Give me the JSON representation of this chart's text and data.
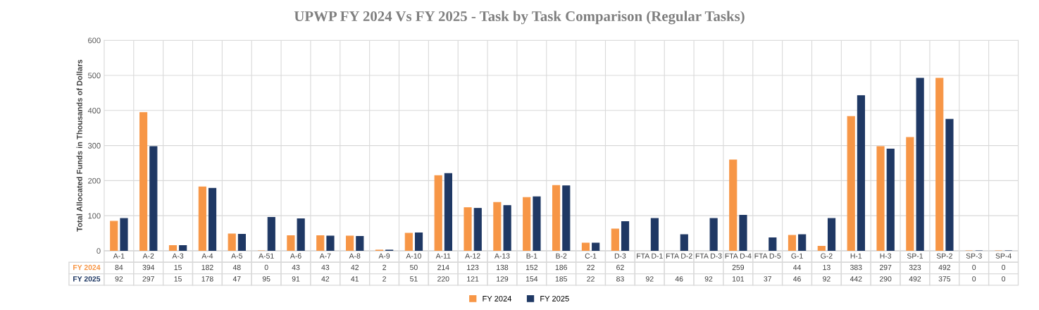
{
  "chart_data": {
    "type": "bar",
    "title": "UPWP FY 2024 Vs FY 2025 - Task by Task Comparison (Regular Tasks)",
    "ylabel": "Total Allocated Funds in Thousands of Dollars",
    "categories": [
      "A-1",
      "A-2",
      "A-3",
      "A-4",
      "A-5",
      "A-51",
      "A-6",
      "A-7",
      "A-8",
      "A-9",
      "A-10",
      "A-11",
      "A-12",
      "A-13",
      "B-1",
      "B-2",
      "C-1",
      "D-3",
      "FTA D-1",
      "FTA D-2",
      "FTA D-3",
      "FTA D-4",
      "FTA D-5",
      "G-1",
      "G-2",
      "H-1",
      "H-3",
      "SP-1",
      "SP-2",
      "SP-3",
      "SP-4"
    ],
    "series": [
      {
        "name": "FY 2024",
        "color": "#f79646",
        "values": [
          84,
          394,
          15,
          182,
          48,
          0,
          43,
          43,
          42,
          2,
          50,
          214,
          123,
          138,
          152,
          186,
          22,
          62,
          null,
          null,
          null,
          259,
          null,
          44,
          13,
          383,
          297,
          323,
          492,
          0,
          0
        ]
      },
      {
        "name": "FY 2025",
        "color": "#1f3864",
        "values": [
          92,
          297,
          15,
          178,
          47,
          95,
          91,
          42,
          41,
          2,
          51,
          220,
          121,
          129,
          154,
          185,
          22,
          83,
          92,
          46,
          92,
          101,
          37,
          46,
          92,
          442,
          290,
          492,
          375,
          0,
          0
        ]
      }
    ],
    "ylim": [
      0,
      600
    ],
    "yticks": [
      0,
      100,
      200,
      300,
      400,
      500,
      600
    ],
    "grid": true,
    "data_labels": true,
    "legend": "bottom"
  }
}
